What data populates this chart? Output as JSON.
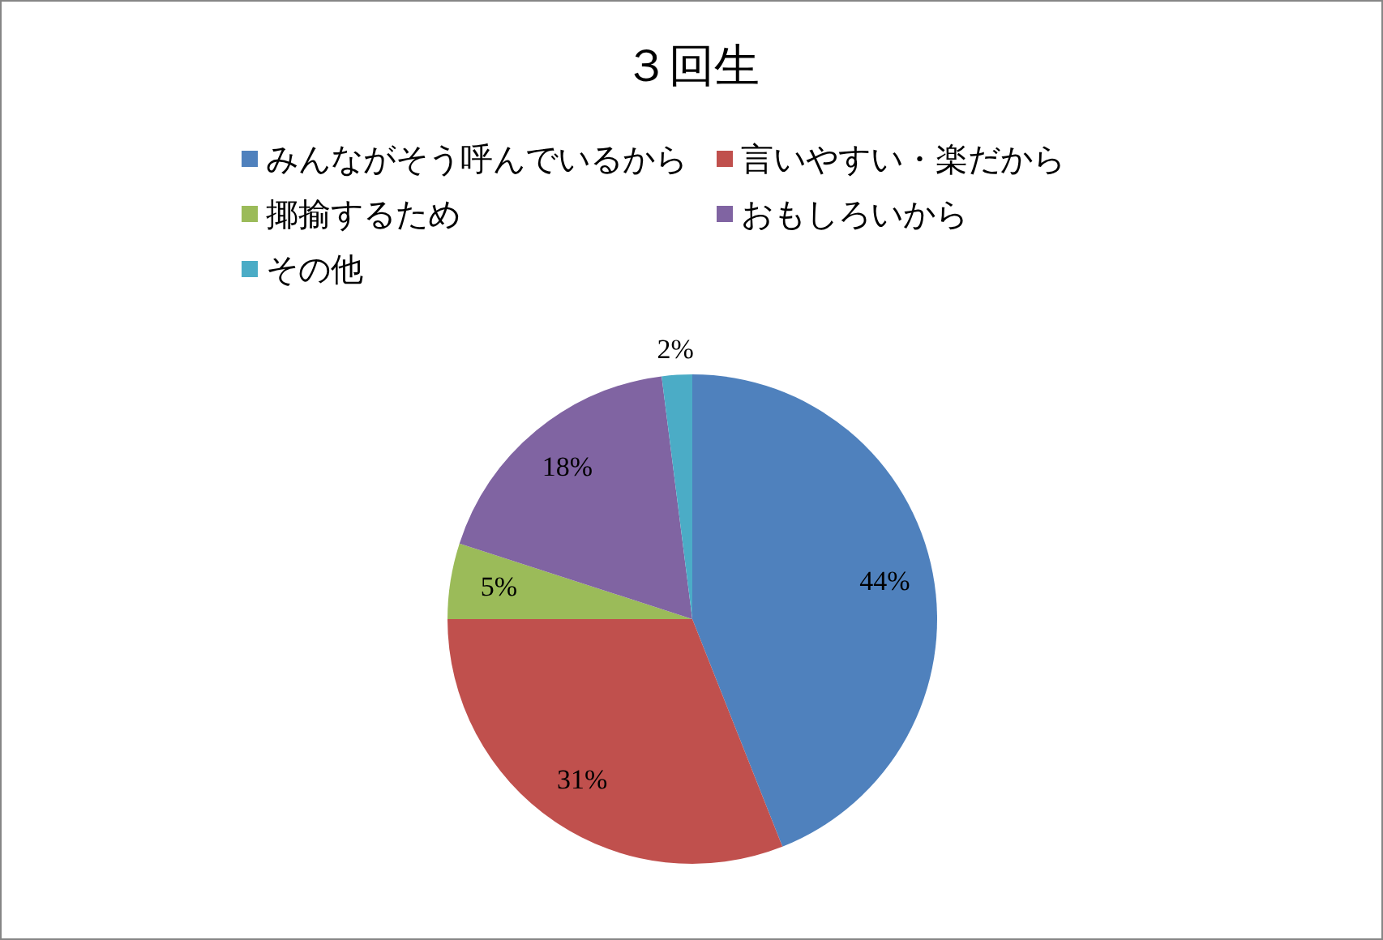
{
  "chart_data": {
    "type": "pie",
    "title": "３回生",
    "categories": [
      "みんながそう呼んでいるから",
      "言いやすい・楽だから",
      "揶揄するため",
      "おもしろいから",
      "その他"
    ],
    "values": [
      44,
      31,
      5,
      18,
      2
    ],
    "colors": [
      "#4f81bd",
      "#c0504d",
      "#9bbb59",
      "#8064a2",
      "#4bacc6"
    ],
    "value_labels": [
      "44%",
      "31%",
      "5%",
      "18%",
      "2%"
    ],
    "legend": "top"
  }
}
